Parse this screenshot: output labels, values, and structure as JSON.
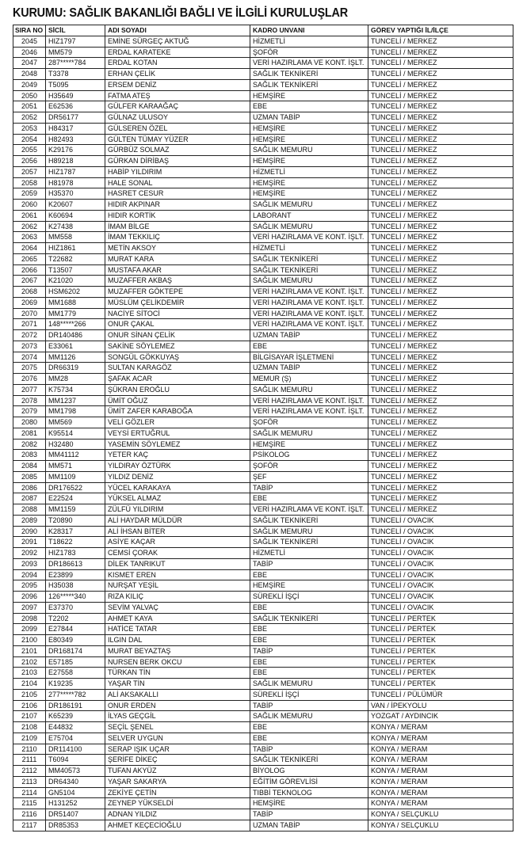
{
  "title": "KURUMU: SAĞLIK BAKANLIĞI BAĞLI VE İLGİLİ KURULUŞLAR",
  "columns": [
    "SIRA NO",
    "SİCİL",
    "ADI SOYADI",
    "KADRO UNVANI",
    "GÖREV YAPTIĞI İL/İLÇE"
  ],
  "rows": [
    [
      "2045",
      "HIZ1797",
      "EMİNE SÜRGEÇ AKTUĞ",
      "HİZMETLİ",
      "TUNCELİ / MERKEZ"
    ],
    [
      "2046",
      "MM579",
      "ERDAL KARATEKE",
      "ŞOFÖR",
      "TUNCELİ / MERKEZ"
    ],
    [
      "2047",
      "287*****784",
      "ERDAL KOTAN",
      "VERİ HAZIRLAMA VE KONT. İŞLT.",
      "TUNCELİ / MERKEZ"
    ],
    [
      "2048",
      "T3378",
      "ERHAN ÇELİK",
      "SAĞLIK TEKNİKERİ",
      "TUNCELİ / MERKEZ"
    ],
    [
      "2049",
      "T5095",
      "ERSEM DENİZ",
      "SAĞLIK TEKNİKERİ",
      "TUNCELİ / MERKEZ"
    ],
    [
      "2050",
      "H35649",
      "FATMA ATEŞ",
      "HEMŞİRE",
      "TUNCELİ / MERKEZ"
    ],
    [
      "2051",
      "E62536",
      "GÜLFER KARAAĞAÇ",
      "EBE",
      "TUNCELİ / MERKEZ"
    ],
    [
      "2052",
      "DR56177",
      "GÜLNAZ ULUSOY",
      "UZMAN TABİP",
      "TUNCELİ / MERKEZ"
    ],
    [
      "2053",
      "H84317",
      "GÜLSEREN ÖZEL",
      "HEMŞİRE",
      "TUNCELİ / MERKEZ"
    ],
    [
      "2054",
      "H82493",
      "GÜLTEN TÜMAY YÜZER",
      "HEMŞİRE",
      "TUNCELİ / MERKEZ"
    ],
    [
      "2055",
      "K29176",
      "GÜRBÜZ SOLMAZ",
      "SAĞLIK MEMURU",
      "TUNCELİ / MERKEZ"
    ],
    [
      "2056",
      "H89218",
      "GÜRKAN DİRİBAŞ",
      "HEMŞİRE",
      "TUNCELİ / MERKEZ"
    ],
    [
      "2057",
      "HIZ1787",
      "HABİP YILDIRIM",
      "HİZMETLİ",
      "TUNCELİ / MERKEZ"
    ],
    [
      "2058",
      "H81978",
      "HALE SONAL",
      "HEMŞİRE",
      "TUNCELİ / MERKEZ"
    ],
    [
      "2059",
      "H35370",
      "HASRET CESUR",
      "HEMŞİRE",
      "TUNCELİ / MERKEZ"
    ],
    [
      "2060",
      "K20607",
      "HIDIR AKPINAR",
      "SAĞLIK MEMURU",
      "TUNCELİ / MERKEZ"
    ],
    [
      "2061",
      "K60694",
      "HIDIR KORTİK",
      "LABORANT",
      "TUNCELİ / MERKEZ"
    ],
    [
      "2062",
      "K27438",
      "İMAM BİLGE",
      "SAĞLIK MEMURU",
      "TUNCELİ / MERKEZ"
    ],
    [
      "2063",
      "MM558",
      "İMAM TEKKILIÇ",
      "VERİ HAZIRLAMA VE KONT. İŞLT.",
      "TUNCELİ / MERKEZ"
    ],
    [
      "2064",
      "HIZ1861",
      "METİN AKSOY",
      "HİZMETLİ",
      "TUNCELİ / MERKEZ"
    ],
    [
      "2065",
      "T22682",
      "MURAT KARA",
      "SAĞLIK TEKNİKERİ",
      "TUNCELİ / MERKEZ"
    ],
    [
      "2066",
      "T13507",
      "MUSTAFA AKAR",
      "SAĞLIK TEKNİKERİ",
      "TUNCELİ / MERKEZ"
    ],
    [
      "2067",
      "K21020",
      "MUZAFFER AKBAŞ",
      "SAĞLIK MEMURU",
      "TUNCELİ / MERKEZ"
    ],
    [
      "2068",
      "HSM6202",
      "MUZAFFER GÖKTEPE",
      "VERİ HAZIRLAMA VE KONT. İŞLT.",
      "TUNCELİ / MERKEZ"
    ],
    [
      "2069",
      "MM1688",
      "MÜSLÜM ÇELİKDEMİR",
      "VERİ HAZIRLAMA VE KONT. İŞLT.",
      "TUNCELİ / MERKEZ"
    ],
    [
      "2070",
      "MM1779",
      "NACİYE SİTOCİ",
      "VERİ HAZIRLAMA VE KONT. İŞLT.",
      "TUNCELİ / MERKEZ"
    ],
    [
      "2071",
      "148*****266",
      "ONUR ÇAKAL",
      "VERİ HAZIRLAMA VE KONT. İŞLT.",
      "TUNCELİ / MERKEZ"
    ],
    [
      "2072",
      "DR140486",
      "ONUR SİNAN ÇELİK",
      "UZMAN TABİP",
      "TUNCELİ / MERKEZ"
    ],
    [
      "2073",
      "E33061",
      "SAKİNE SÖYLEMEZ",
      "EBE",
      "TUNCELİ / MERKEZ"
    ],
    [
      "2074",
      "MM1126",
      "SONGÜL GÖKKUYAŞ",
      "BİLGİSAYAR İŞLETMENİ",
      "TUNCELİ / MERKEZ"
    ],
    [
      "2075",
      "DR66319",
      "SULTAN KARAGÖZ",
      "UZMAN TABİP",
      "TUNCELİ / MERKEZ"
    ],
    [
      "2076",
      "MM28",
      "ŞAFAK ACAR",
      "MEMUR (Ş)",
      "TUNCELİ / MERKEZ"
    ],
    [
      "2077",
      "K75734",
      "ŞÜKRAN EROĞLU",
      "SAĞLIK MEMURU",
      "TUNCELİ / MERKEZ"
    ],
    [
      "2078",
      "MM1237",
      "ÜMİT OĞUZ",
      "VERİ HAZIRLAMA VE KONT. İŞLT.",
      "TUNCELİ / MERKEZ"
    ],
    [
      "2079",
      "MM1798",
      "ÜMİT ZAFER KARABOĞA",
      "VERİ HAZIRLAMA VE KONT. İŞLT.",
      "TUNCELİ / MERKEZ"
    ],
    [
      "2080",
      "MM569",
      "VELİ GÖZLER",
      "ŞOFÖR",
      "TUNCELİ / MERKEZ"
    ],
    [
      "2081",
      "K95514",
      "VEYSİ ERTUĞRUL",
      "SAĞLIK MEMURU",
      "TUNCELİ / MERKEZ"
    ],
    [
      "2082",
      "H32480",
      "YASEMİN SÖYLEMEZ",
      "HEMŞİRE",
      "TUNCELİ / MERKEZ"
    ],
    [
      "2083",
      "MM41112",
      "YETER KAÇ",
      "PSİKOLOG",
      "TUNCELİ / MERKEZ"
    ],
    [
      "2084",
      "MM571",
      "YILDIRAY ÖZTÜRK",
      "ŞOFÖR",
      "TUNCELİ / MERKEZ"
    ],
    [
      "2085",
      "MM1109",
      "YILDIZ DENİZ",
      "ŞEF",
      "TUNCELİ / MERKEZ"
    ],
    [
      "2086",
      "DR176522",
      "YÜCEL KARAKAYA",
      "TABİP",
      "TUNCELİ / MERKEZ"
    ],
    [
      "2087",
      "E22524",
      "YÜKSEL ALMAZ",
      "EBE",
      "TUNCELİ / MERKEZ"
    ],
    [
      "2088",
      "MM1159",
      "ZÜLFÜ YILDIRIM",
      "VERİ HAZIRLAMA VE KONT. İŞLT.",
      "TUNCELİ / MERKEZ"
    ],
    [
      "2089",
      "T20890",
      "ALİ HAYDAR MÜLDÜR",
      "SAĞLIK TEKNİKERİ",
      "TUNCELİ / OVACIK"
    ],
    [
      "2090",
      "K28317",
      "ALİ İHSAN BİTER",
      "SAĞLIK MEMURU",
      "TUNCELİ / OVACIK"
    ],
    [
      "2091",
      "T18622",
      "ASİYE KAÇAR",
      "SAĞLIK TEKNİKERİ",
      "TUNCELİ / OVACIK"
    ],
    [
      "2092",
      "HIZ1783",
      "CEMSİ ÇORAK",
      "HİZMETLİ",
      "TUNCELİ / OVACIK"
    ],
    [
      "2093",
      "DR186613",
      "DİLEK TANRIKUT",
      "TABİP",
      "TUNCELİ / OVACIK"
    ],
    [
      "2094",
      "E23899",
      "KISMET EREN",
      "EBE",
      "TUNCELİ / OVACIK"
    ],
    [
      "2095",
      "H35038",
      "NURŞAT YEŞİL",
      "HEMŞİRE",
      "TUNCELİ / OVACIK"
    ],
    [
      "2096",
      "126*****340",
      "RIZA KILIÇ",
      "SÜREKLİ İŞÇİ",
      "TUNCELİ / OVACIK"
    ],
    [
      "2097",
      "E37370",
      "SEVİM YALVAÇ",
      "EBE",
      "TUNCELİ / OVACIK"
    ],
    [
      "2098",
      "T2202",
      "AHMET KAYA",
      "SAĞLIK TEKNİKERİ",
      "TUNCELİ / PERTEK"
    ],
    [
      "2099",
      "E27844",
      "HATİCE TATAR",
      "EBE",
      "TUNCELİ / PERTEK"
    ],
    [
      "2100",
      "E80349",
      "ILGIN DAL",
      "EBE",
      "TUNCELİ / PERTEK"
    ],
    [
      "2101",
      "DR168174",
      "MURAT BEYAZTAŞ",
      "TABİP",
      "TUNCELİ / PERTEK"
    ],
    [
      "2102",
      "E57185",
      "NURSEN BERK OKCU",
      "EBE",
      "TUNCELİ / PERTEK"
    ],
    [
      "2103",
      "E27558",
      "TÜRKAN TİN",
      "EBE",
      "TUNCELİ / PERTEK"
    ],
    [
      "2104",
      "K19235",
      "YAŞAR TİN",
      "SAĞLIK MEMURU",
      "TUNCELİ / PERTEK"
    ],
    [
      "2105",
      "277*****782",
      "ALİ AKSAKALLI",
      "SÜREKLİ İŞÇİ",
      "TUNCELİ / PÜLÜMÜR"
    ],
    [
      "2106",
      "DR186191",
      "ONUR ERDEN",
      "TABİP",
      "VAN / İPEKYOLU"
    ],
    [
      "2107",
      "K65239",
      "İLYAS GEÇGİL",
      "SAĞLIK MEMURU",
      "YOZGAT / AYDINCIK"
    ],
    [
      "2108",
      "E44832",
      "SEÇİL ŞENEL",
      "EBE",
      "KONYA / MERAM"
    ],
    [
      "2109",
      "E75704",
      "SELVER UYGUN",
      "EBE",
      "KONYA / MERAM"
    ],
    [
      "2110",
      "DR114100",
      "SERAP IŞIK UÇAR",
      "TABİP",
      "KONYA / MERAM"
    ],
    [
      "2111",
      "T6094",
      "ŞERİFE DİKEÇ",
      "SAĞLIK TEKNİKERİ",
      "KONYA / MERAM"
    ],
    [
      "2112",
      "MM40573",
      "TUFAN AKYÜZ",
      "BİYOLOG",
      "KONYA / MERAM"
    ],
    [
      "2113",
      "DR64340",
      "YAŞAR SAKARYA",
      "EĞİTİM GÖREVLİSİ",
      "KONYA / MERAM"
    ],
    [
      "2114",
      "GN5104",
      "ZEKİYE ÇETİN",
      "TIBBİ TEKNOLOG",
      "KONYA / MERAM"
    ],
    [
      "2115",
      "H131252",
      "ZEYNEP YÜKSELDİ",
      "HEMŞİRE",
      "KONYA / MERAM"
    ],
    [
      "2116",
      "DR51407",
      "ADNAN YILDIZ",
      "TABİP",
      "KONYA / SELÇUKLU"
    ],
    [
      "2117",
      "DR85353",
      "AHMET KEÇECİOĞLU",
      "UZMAN TABİP",
      "KONYA / SELÇUKLU"
    ]
  ]
}
